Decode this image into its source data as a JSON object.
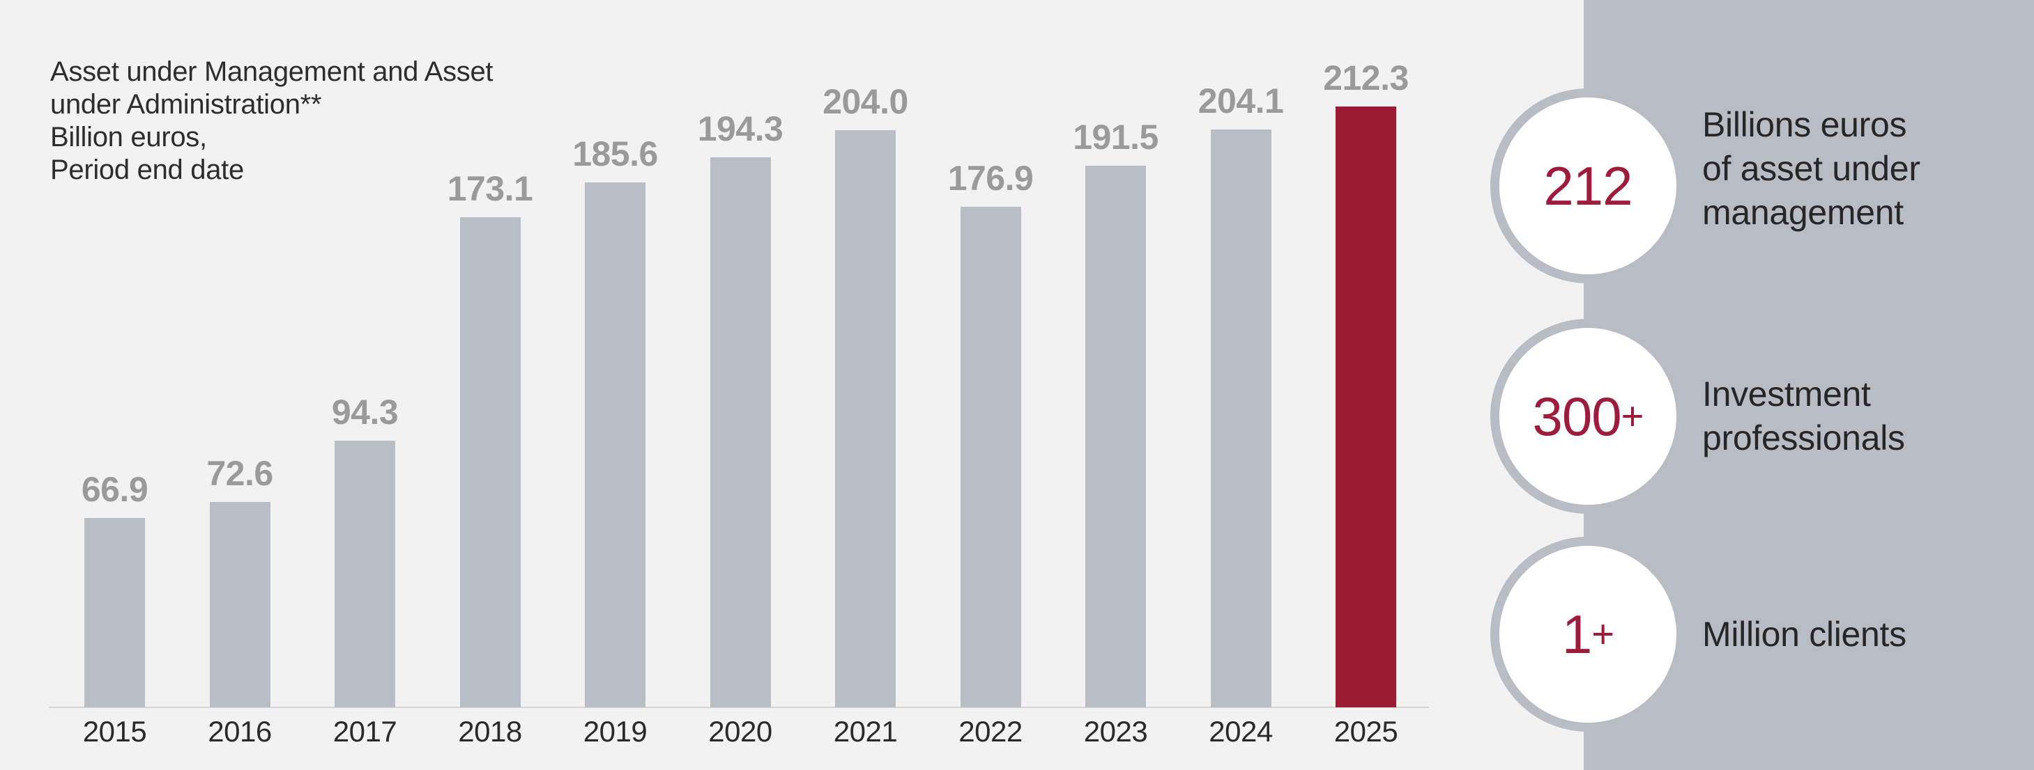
{
  "page": {
    "background": "#f2f2f2",
    "accent_color": "#9b1a34",
    "gray_color": "#b8bcc5"
  },
  "chart_title": "Asset under Management and Asset\nunder Administration**\nBillion euros,\nPeriod end date",
  "chart_data": {
    "type": "bar",
    "title": "Asset under Management and Asset under Administration** Billion euros, Period end date",
    "categories": [
      "2015",
      "2016",
      "2017",
      "2018",
      "2019",
      "2020",
      "2021",
      "2022",
      "2023",
      "2024",
      "2025"
    ],
    "values": [
      66.9,
      72.6,
      94.3,
      173.1,
      185.6,
      194.3,
      204.0,
      176.9,
      191.5,
      204.1,
      212.3
    ],
    "value_labels": [
      "66.9",
      "72.6",
      "94.3",
      "173.1",
      "185.6",
      "194.3",
      "204.0",
      "176.9",
      "191.5",
      "204.1",
      "212.3"
    ],
    "xlabel": "",
    "ylabel": "Billion euros",
    "ylim": [
      0,
      220
    ],
    "grid": false,
    "legend": "none",
    "bar_color": "#b9bdc6",
    "highlight_index": 10,
    "highlight_color": "#9b1a34",
    "value_label_color": "#9a9a9a"
  },
  "panel": {
    "background": "#b8bcc5",
    "number_color": "#9e1b3b",
    "stats": [
      {
        "number": "212",
        "plus": "",
        "label": "Billions euros\nof asset under\nmanagement"
      },
      {
        "number": "300",
        "plus": "+",
        "label": "Investment\nprofessionals"
      },
      {
        "number": "1",
        "plus": "+",
        "label": "Million clients"
      }
    ]
  }
}
